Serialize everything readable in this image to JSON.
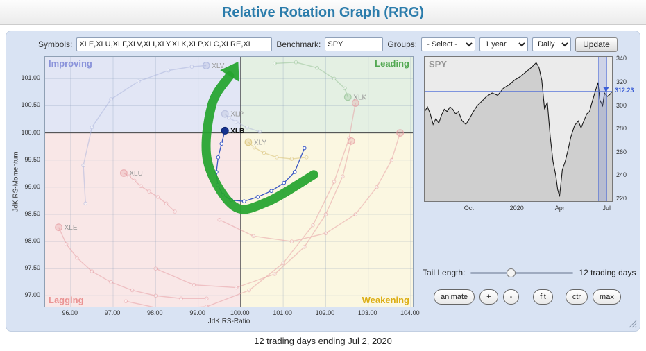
{
  "header": {
    "title": "Relative Rotation Graph (RRG)"
  },
  "toolbar": {
    "symbols_label": "Symbols:",
    "symbols_value": "XLE,XLU,XLF,XLV,XLI,XLY,XLK,XLP,XLC,XLRE,XL",
    "benchmark_label": "Benchmark:",
    "benchmark_value": "SPY",
    "groups_label": "Groups:",
    "groups_selected": "- Select -",
    "period_selected": "1 year",
    "frequency_selected": "Daily",
    "update_label": "Update"
  },
  "tail": {
    "label": "Tail Length:",
    "value_label": "12 trading days",
    "slider_value": 12
  },
  "action_buttons": [
    {
      "label": "animate"
    },
    {
      "label": "+"
    },
    {
      "label": "-"
    },
    {
      "label": "fit"
    },
    {
      "label": "ctr"
    },
    {
      "label": "max"
    }
  ],
  "footer": {
    "status": "12 trading days ending Jul 2, 2020"
  },
  "colors": {
    "title": "#2b7cab",
    "panel_bg": "#d9e3f3",
    "highlight_trail": "#3a57c4",
    "annotation_arrow": "#25a42e"
  },
  "chart_data": [
    {
      "type": "scatter",
      "title": "RRG quadrant chart",
      "xlabel": "JdK RS-Ratio",
      "ylabel": "JdK RS-Momentum",
      "xlim": [
        95.4,
        104.05
      ],
      "ylim": [
        96.8,
        101.4
      ],
      "x_ticks": [
        96,
        97,
        98,
        99,
        100,
        101,
        102,
        103,
        104
      ],
      "y_ticks": [
        97,
        97.5,
        98,
        98.5,
        99,
        99.5,
        100,
        100.5,
        101
      ],
      "center": [
        100,
        100
      ],
      "quadrants": [
        {
          "name": "Improving",
          "color": "#e2e6f5",
          "label_color": "#8a93da",
          "position": "top-left"
        },
        {
          "name": "Leading",
          "color": "#e4f0e3",
          "label_color": "#52a852",
          "position": "top-right"
        },
        {
          "name": "Lagging",
          "color": "#f9e7e7",
          "label_color": "#ea9393",
          "position": "bottom-left"
        },
        {
          "name": "Weakening",
          "color": "#fbf7e1",
          "label_color": "#dcae14",
          "position": "bottom-right"
        }
      ],
      "series": [
        {
          "symbol": "XLV",
          "color": "#a8b2dc",
          "label_color": "#999999",
          "points": [
            [
              96.35,
              98.7
            ],
            [
              96.3,
              99.4
            ],
            [
              96.5,
              100.1
            ],
            [
              96.95,
              100.62
            ],
            [
              97.6,
              100.95
            ],
            [
              98.3,
              101.15
            ],
            [
              98.85,
              101.22
            ],
            [
              99.19,
              101.24
            ]
          ]
        },
        {
          "symbol": "XLP",
          "color": "#b0b8d8",
          "label_color": "#999999",
          "points": [
            [
              100.45,
              100.02
            ],
            [
              100.15,
              100.1
            ],
            [
              99.9,
              100.2
            ],
            [
              99.72,
              100.28
            ],
            [
              99.63,
              100.35
            ]
          ]
        },
        {
          "symbol": "XLK",
          "color": "#93c093",
          "label_color": "#999999",
          "points": [
            [
              100.8,
              101.28
            ],
            [
              101.3,
              101.3
            ],
            [
              101.8,
              101.2
            ],
            [
              102.2,
              101.0
            ],
            [
              102.45,
              100.82
            ],
            [
              102.52,
              100.66
            ]
          ]
        },
        {
          "symbol": "XLY",
          "color": "#d6be6e",
          "label_color": "#999999",
          "points": [
            [
              101.55,
              99.55
            ],
            [
              101.2,
              99.52
            ],
            [
              100.85,
              99.55
            ],
            [
              100.55,
              99.63
            ],
            [
              100.32,
              99.73
            ],
            [
              100.18,
              99.83
            ]
          ]
        },
        {
          "symbol": "XLU",
          "color": "#e59aa0",
          "label_color": "#999999",
          "points": [
            [
              98.45,
              98.55
            ],
            [
              98.25,
              98.7
            ],
            [
              98.05,
              98.82
            ],
            [
              97.85,
              98.92
            ],
            [
              97.65,
              99.02
            ],
            [
              97.5,
              99.12
            ],
            [
              97.38,
              99.2
            ],
            [
              97.25,
              99.26
            ]
          ]
        },
        {
          "symbol": "XLE",
          "color": "#e59aa0",
          "label_color": "#999999",
          "points": [
            [
              99.2,
              96.95
            ],
            [
              98.6,
              96.95
            ],
            [
              98.0,
              97.0
            ],
            [
              97.45,
              97.1
            ],
            [
              96.95,
              97.25
            ],
            [
              96.5,
              97.45
            ],
            [
              96.15,
              97.7
            ],
            [
              95.9,
              97.95
            ],
            [
              95.72,
              98.26
            ]
          ]
        },
        {
          "symbol": "",
          "color": "#e59aa0",
          "points": [
            [
              97.3,
              96.9
            ],
            [
              98.2,
              96.75
            ],
            [
              99.2,
              96.8
            ],
            [
              100.2,
              97.1
            ],
            [
              101.0,
              97.6
            ],
            [
              101.7,
              98.3
            ],
            [
              102.2,
              99.1
            ],
            [
              102.55,
              99.9
            ],
            [
              102.7,
              100.55
            ]
          ]
        },
        {
          "symbol": "",
          "color": "#e59aa0",
          "points": [
            [
              98.0,
              97.5
            ],
            [
              98.9,
              97.2
            ],
            [
              99.9,
              97.15
            ],
            [
              100.8,
              97.4
            ],
            [
              101.5,
              97.9
            ],
            [
              102.0,
              98.5
            ],
            [
              102.4,
              99.2
            ],
            [
              102.6,
              99.85
            ]
          ]
        },
        {
          "symbol": "",
          "color": "#e59aa0",
          "points": [
            [
              99.5,
              98.4
            ],
            [
              100.3,
              98.1
            ],
            [
              101.2,
              98.0
            ],
            [
              102.0,
              98.15
            ],
            [
              102.7,
              98.5
            ],
            [
              103.2,
              99.0
            ],
            [
              103.55,
              99.5
            ],
            [
              103.75,
              100.0
            ]
          ]
        },
        {
          "symbol": "XLB",
          "highlighted": true,
          "color": "#3a57c4",
          "head_color": "#16328f",
          "label_color": "#111111",
          "points": [
            [
              101.5,
              99.72
            ],
            [
              101.27,
              99.28
            ],
            [
              101.02,
              99.08
            ],
            [
              100.72,
              98.93
            ],
            [
              100.4,
              98.82
            ],
            [
              100.08,
              98.74
            ],
            [
              99.78,
              98.76
            ],
            [
              99.58,
              98.86
            ],
            [
              99.46,
              99.04
            ],
            [
              99.43,
              99.28
            ],
            [
              99.47,
              99.55
            ],
            [
              99.55,
              99.8
            ],
            [
              99.63,
              100.04
            ]
          ]
        }
      ],
      "annotation_arrow": {
        "color": "#25a42e",
        "points": [
          [
            101.72,
            99.23
          ],
          [
            100.6,
            98.72
          ],
          [
            99.84,
            98.65
          ],
          [
            99.22,
            99.48
          ],
          [
            99.32,
            100.51
          ],
          [
            99.74,
            101.05
          ]
        ]
      }
    },
    {
      "type": "area",
      "symbol": "SPY",
      "ylim": [
        218,
        342
      ],
      "y_ticks": [
        220,
        240,
        260,
        280,
        300,
        320,
        340
      ],
      "x_ticks": [
        {
          "label": "Oct",
          "pos": 0.24
        },
        {
          "label": "2020",
          "pos": 0.495
        },
        {
          "label": "Apr",
          "pos": 0.725
        },
        {
          "label": "Jul",
          "pos": 0.975
        }
      ],
      "last_price": 312.23,
      "last_price_label": "312.23",
      "highlight_band": [
        0.928,
        0.972
      ],
      "line_color": "#1a1a1a",
      "fill_color": "#cfcfcf",
      "price_line_color": "#3d5fd6",
      "points": [
        [
          0.0,
          295
        ],
        [
          0.015,
          299
        ],
        [
          0.03,
          293
        ],
        [
          0.045,
          284
        ],
        [
          0.06,
          289
        ],
        [
          0.075,
          285
        ],
        [
          0.09,
          292
        ],
        [
          0.105,
          297
        ],
        [
          0.12,
          295
        ],
        [
          0.135,
          299
        ],
        [
          0.15,
          297
        ],
        [
          0.165,
          293
        ],
        [
          0.18,
          295
        ],
        [
          0.2,
          287
        ],
        [
          0.22,
          284
        ],
        [
          0.24,
          289
        ],
        [
          0.26,
          295
        ],
        [
          0.28,
          300
        ],
        [
          0.3,
          303
        ],
        [
          0.33,
          308
        ],
        [
          0.36,
          311
        ],
        [
          0.39,
          309
        ],
        [
          0.42,
          315
        ],
        [
          0.45,
          318
        ],
        [
          0.48,
          322
        ],
        [
          0.51,
          325
        ],
        [
          0.54,
          329
        ],
        [
          0.57,
          333
        ],
        [
          0.595,
          337
        ],
        [
          0.61,
          333
        ],
        [
          0.625,
          322
        ],
        [
          0.64,
          297
        ],
        [
          0.655,
          303
        ],
        [
          0.67,
          274
        ],
        [
          0.685,
          252
        ],
        [
          0.7,
          240
        ],
        [
          0.71,
          228
        ],
        [
          0.72,
          222
        ],
        [
          0.735,
          245
        ],
        [
          0.75,
          252
        ],
        [
          0.765,
          262
        ],
        [
          0.78,
          273
        ],
        [
          0.8,
          283
        ],
        [
          0.82,
          287
        ],
        [
          0.835,
          281
        ],
        [
          0.85,
          287
        ],
        [
          0.865,
          293
        ],
        [
          0.88,
          295
        ],
        [
          0.895,
          304
        ],
        [
          0.91,
          312
        ],
        [
          0.925,
          320
        ],
        [
          0.935,
          305
        ],
        [
          0.95,
          300
        ],
        [
          0.96,
          311
        ],
        [
          0.975,
          308
        ],
        [
          0.99,
          310
        ],
        [
          1.0,
          312.23
        ]
      ]
    }
  ]
}
